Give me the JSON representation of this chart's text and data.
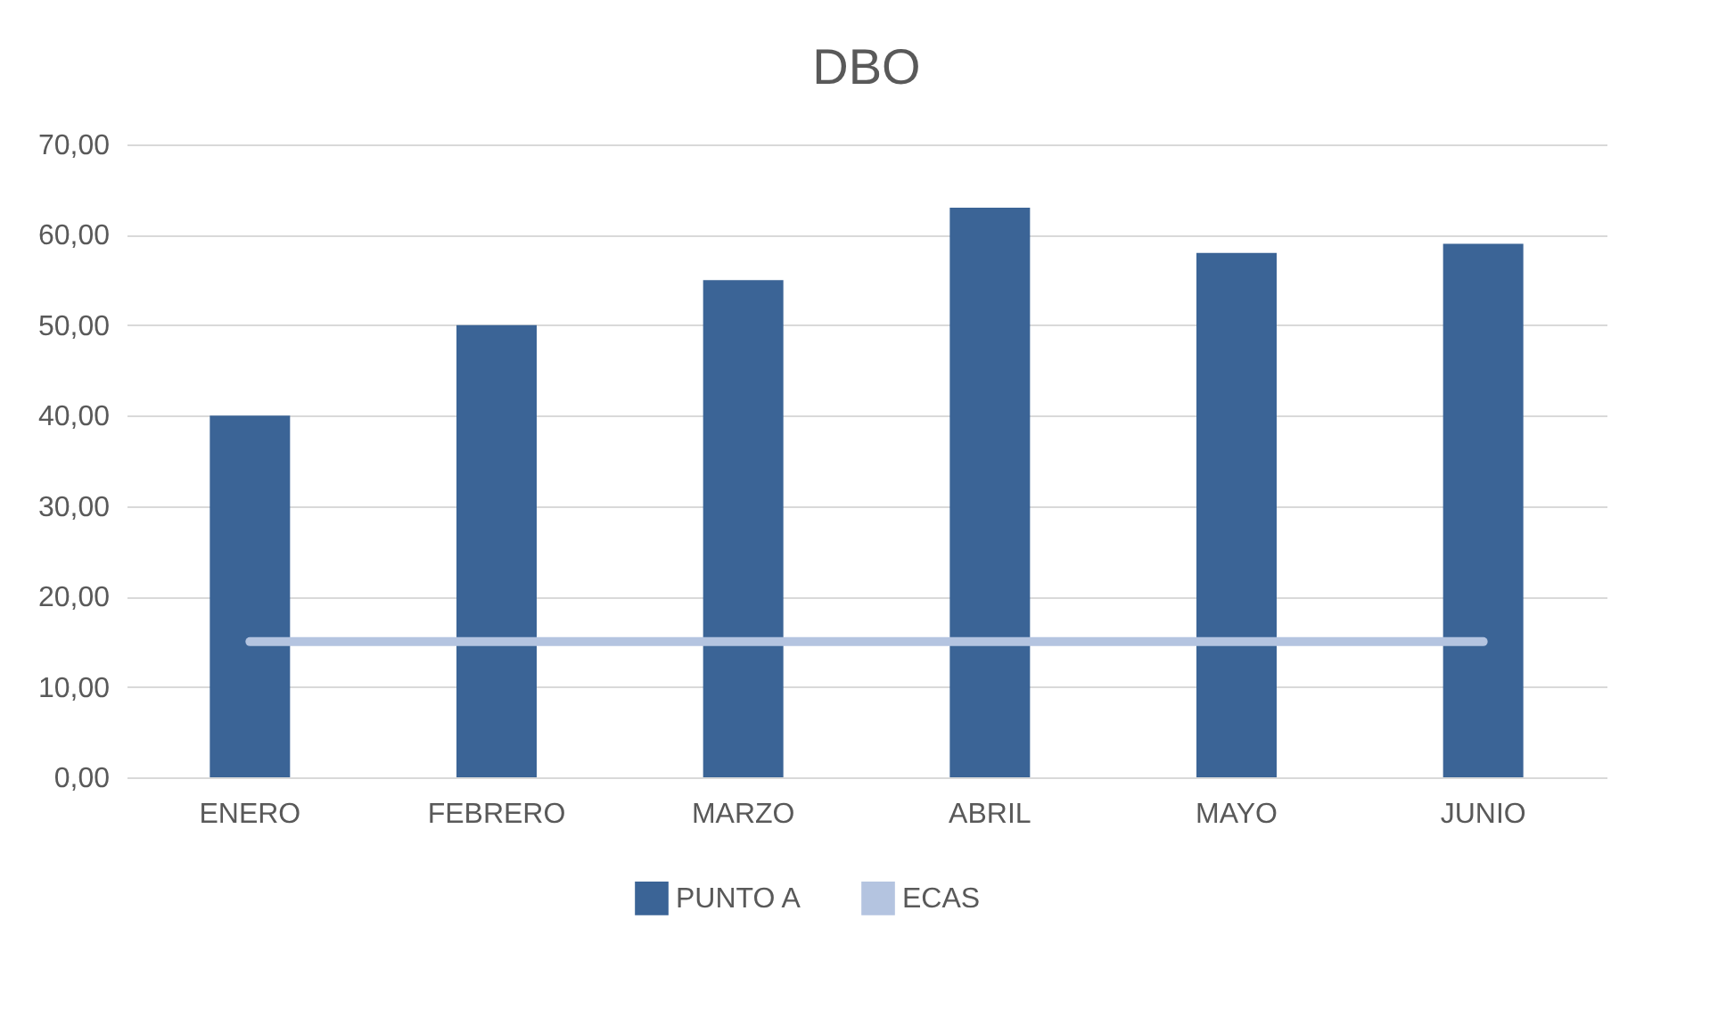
{
  "chart_data": {
    "type": "bar",
    "title": "DBO",
    "categories": [
      "ENERO",
      "FEBRERO",
      "MARZO",
      "ABRIL",
      "MAYO",
      "JUNIO"
    ],
    "series": [
      {
        "name": "PUNTO A",
        "color": "#3b6496",
        "values": [
          40,
          50,
          55,
          63,
          58,
          59
        ]
      },
      {
        "name": "ECAS",
        "type": "line",
        "color": "#b4c4e0",
        "values": [
          15,
          15,
          15,
          15,
          15,
          15
        ]
      }
    ],
    "ylim": [
      0,
      70
    ],
    "yticks": [
      {
        "value": 0,
        "label": "0,00"
      },
      {
        "value": 10,
        "label": "10,00"
      },
      {
        "value": 20,
        "label": "20,00"
      },
      {
        "value": 30,
        "label": "30,00"
      },
      {
        "value": 40,
        "label": "40,00"
      },
      {
        "value": 50,
        "label": "50,00"
      },
      {
        "value": 60,
        "label": "60,00"
      },
      {
        "value": 70,
        "label": "70,00"
      }
    ],
    "grid": "y",
    "legend": "bottom"
  }
}
